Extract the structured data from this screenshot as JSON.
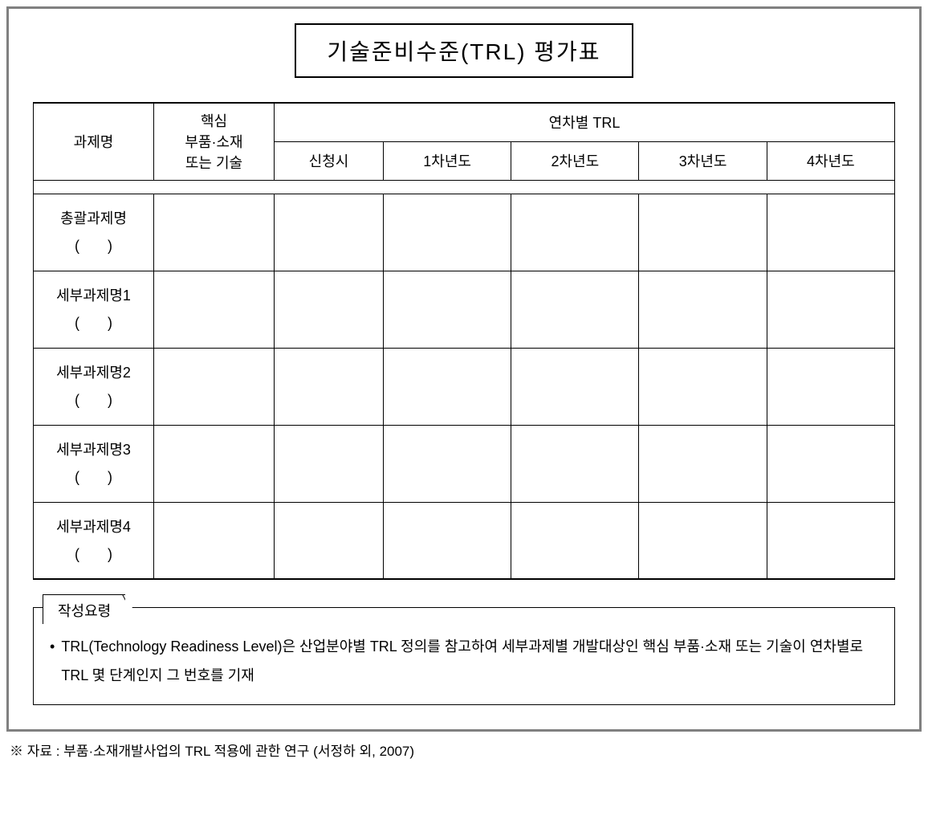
{
  "title": "기술준비수준(TRL) 평가표",
  "table": {
    "header": {
      "task": "과제명",
      "core_line1": "핵심",
      "core_line2": "부품·소재",
      "core_line3": "또는 기술",
      "year_group": "연차별 TRL",
      "years": {
        "apply": "신청시",
        "y1": "1차년도",
        "y2": "2차년도",
        "y3": "3차년도",
        "y4": "4차년도"
      }
    },
    "rows": [
      {
        "label_line1": "총괄과제명",
        "label_line2": "(       )",
        "core": "",
        "apply": "",
        "y1": "",
        "y2": "",
        "y3": "",
        "y4": ""
      },
      {
        "label_line1": "세부과제명1",
        "label_line2": "(       )",
        "core": "",
        "apply": "",
        "y1": "",
        "y2": "",
        "y3": "",
        "y4": ""
      },
      {
        "label_line1": "세부과제명2",
        "label_line2": "(       )",
        "core": "",
        "apply": "",
        "y1": "",
        "y2": "",
        "y3": "",
        "y4": ""
      },
      {
        "label_line1": "세부과제명3",
        "label_line2": "(       )",
        "core": "",
        "apply": "",
        "y1": "",
        "y2": "",
        "y3": "",
        "y4": ""
      },
      {
        "label_line1": "세부과제명4",
        "label_line2": "(       )",
        "core": "",
        "apply": "",
        "y1": "",
        "y2": "",
        "y3": "",
        "y4": ""
      }
    ]
  },
  "instructions": {
    "label": "작성요령",
    "bullet": "•",
    "text": "TRL(Technology Readiness Level)은 산업분야별 TRL 정의를 참고하여 세부과제별 개발대상인 핵심 부품·소재 또는 기술이 연차별로 TRL 몇 단계인지 그 번호를 기재"
  },
  "footnote": "※ 자료 : 부품·소재개발사업의 TRL 적용에 관한 연구 (서정하 외, 2007)",
  "colors": {
    "frame_border": "#808080",
    "line": "#000000",
    "bg": "#ffffff",
    "text": "#000000"
  },
  "typography": {
    "title_fontsize": 28,
    "body_fontsize": 18,
    "footnote_fontsize": 17
  }
}
